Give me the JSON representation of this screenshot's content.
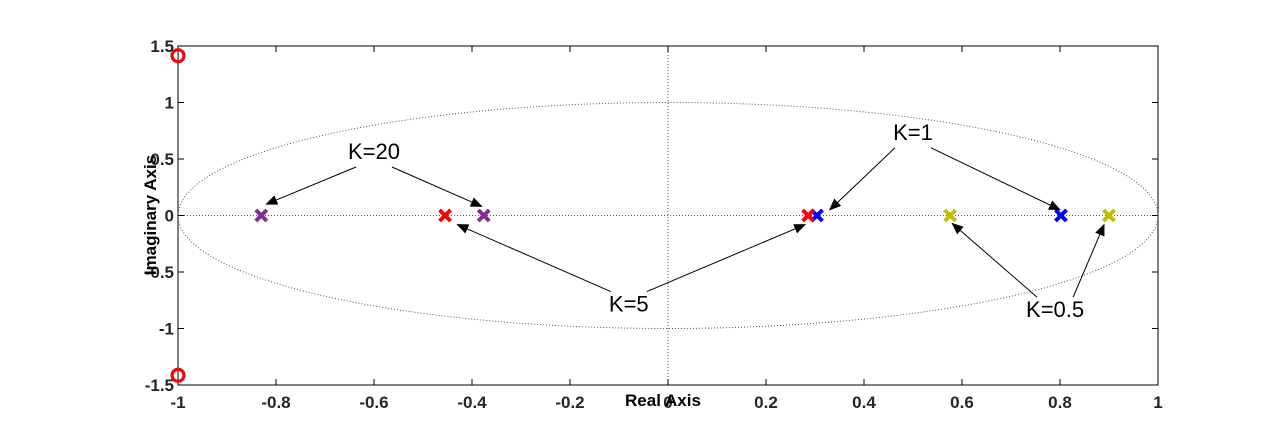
{
  "chart_data": {
    "type": "scatter",
    "xlabel": "Real Axis",
    "ylabel": "Imaginary Axis",
    "xlim": [
      -1,
      1
    ],
    "ylim": [
      -1.5,
      1.5
    ],
    "x_ticks": [
      -1,
      -0.8,
      -0.6,
      -0.4,
      -0.2,
      0,
      0.2,
      0.4,
      0.6,
      0.8,
      1
    ],
    "x_tick_labels": [
      "-1",
      "-0.8",
      "-0.6",
      "-0.4",
      "-0.2",
      "0",
      "0.2",
      "0.4",
      "0.6",
      "0.8",
      "1"
    ],
    "y_ticks": [
      -1.5,
      -1,
      -0.5,
      0,
      0.5,
      1,
      1.5
    ],
    "y_tick_labels": [
      "-1.5",
      "-1",
      "-0.5",
      "0",
      "0.5",
      "1",
      "1.5"
    ],
    "grid": false,
    "reference_curve": "unit circle (dotted)",
    "zeros": [
      {
        "x": -1,
        "y": 1.414,
        "color": "#0000ff"
      },
      {
        "x": -1,
        "y": 1.414,
        "color": "#ff0000"
      },
      {
        "x": -1,
        "y": -1.414,
        "color": "#0000ff"
      },
      {
        "x": -1,
        "y": -1.414,
        "color": "#ff0000"
      }
    ],
    "series": [
      {
        "color": "#bfbf00",
        "points": [
          {
            "x": 0.576,
            "y": 0
          },
          {
            "x": 0.9,
            "y": 0
          }
        ]
      },
      {
        "color": "#0000ff",
        "points": [
          {
            "x": 0.304,
            "y": 0
          },
          {
            "x": 0.802,
            "y": 0
          }
        ]
      },
      {
        "color": "#ff0000",
        "points": [
          {
            "x": -0.455,
            "y": 0
          },
          {
            "x": 0.286,
            "y": 0
          }
        ]
      },
      {
        "color": "#7e2f8e",
        "points": [
          {
            "x": -0.83,
            "y": 0
          },
          {
            "x": -0.376,
            "y": 0
          }
        ]
      }
    ],
    "annotations": [
      {
        "text": "K=20",
        "x": -0.6,
        "y": 0.5,
        "arrows_to": [
          {
            "x": -0.82,
            "y": 0.1
          },
          {
            "x": -0.38,
            "y": 0.08
          }
        ]
      },
      {
        "text": "K=1",
        "x": 0.5,
        "y": 0.67,
        "arrows_to": [
          {
            "x": 0.33,
            "y": 0.05
          },
          {
            "x": 0.8,
            "y": 0.05
          }
        ]
      },
      {
        "text": "K=5",
        "x": -0.08,
        "y": -0.85,
        "arrows_to": [
          {
            "x": -0.43,
            "y": -0.08
          },
          {
            "x": 0.28,
            "y": -0.08
          }
        ]
      },
      {
        "text": "K=0.5",
        "x": 0.79,
        "y": -0.9,
        "arrows_to": [
          {
            "x": 0.58,
            "y": -0.07
          },
          {
            "x": 0.89,
            "y": -0.08
          }
        ]
      }
    ]
  }
}
